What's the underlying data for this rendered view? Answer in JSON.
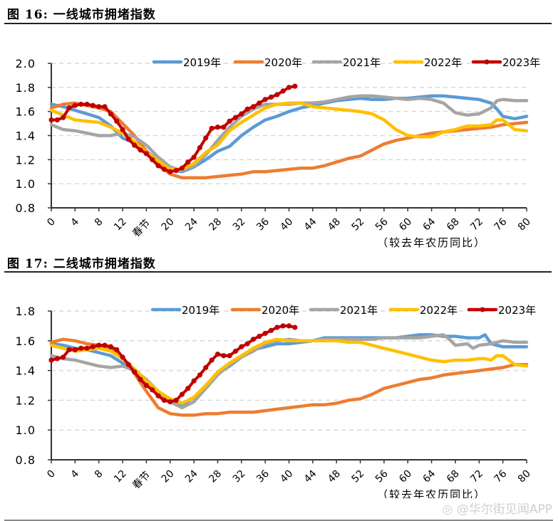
{
  "page": {
    "watermark": "@华尔街见闻APP",
    "watermark_icon": "weibo-icon"
  },
  "colors": {
    "2019": "#5B9BD5",
    "2020": "#ED7D31",
    "2021": "#A5A5A5",
    "2022": "#FFC000",
    "2023": "#C00000"
  },
  "chart_data": [
    {
      "type": "line",
      "figure_label": "图 16:",
      "title": "一线城市拥堵指数",
      "xlabel": "（较去年农历同比）",
      "ylabel": "",
      "xlim": [
        0,
        80
      ],
      "ylim": [
        0.8,
        2.0
      ],
      "yticks": [
        "0.8",
        "1.0",
        "1.2",
        "1.4",
        "1.6",
        "1.8",
        "2.0"
      ],
      "xticks": [
        "0",
        "4",
        "8",
        "12",
        "春节",
        "20",
        "24",
        "28",
        "32",
        "36",
        "40",
        "44",
        "48",
        "52",
        "56",
        "60",
        "64",
        "68",
        "72",
        "76",
        "80"
      ],
      "grid": true,
      "legend": "top-right",
      "series": [
        {
          "name": "2019年",
          "key": "2019",
          "x": [
            0,
            2,
            4,
            6,
            8,
            10,
            12,
            14,
            16,
            18,
            20,
            22,
            24,
            26,
            28,
            30,
            32,
            34,
            36,
            38,
            40,
            42,
            44,
            46,
            48,
            50,
            52,
            54,
            56,
            58,
            60,
            62,
            64,
            66,
            68,
            70,
            72,
            74,
            75,
            76,
            78,
            80
          ],
          "y": [
            1.66,
            1.64,
            1.61,
            1.58,
            1.55,
            1.48,
            1.38,
            1.34,
            1.27,
            1.19,
            1.12,
            1.1,
            1.14,
            1.2,
            1.27,
            1.31,
            1.4,
            1.47,
            1.53,
            1.56,
            1.6,
            1.63,
            1.65,
            1.67,
            1.69,
            1.7,
            1.71,
            1.7,
            1.7,
            1.71,
            1.71,
            1.72,
            1.73,
            1.73,
            1.72,
            1.71,
            1.7,
            1.67,
            1.62,
            1.56,
            1.54,
            1.56
          ]
        },
        {
          "name": "2020年",
          "key": "2020",
          "x": [
            0,
            2,
            4,
            6,
            8,
            10,
            12,
            14,
            16,
            18,
            20,
            22,
            24,
            26,
            28,
            30,
            32,
            34,
            36,
            38,
            40,
            42,
            44,
            46,
            48,
            50,
            52,
            54,
            56,
            58,
            60,
            62,
            64,
            66,
            68,
            70,
            72,
            74,
            76,
            78,
            80
          ],
          "y": [
            1.63,
            1.66,
            1.67,
            1.65,
            1.63,
            1.6,
            1.5,
            1.4,
            1.27,
            1.16,
            1.08,
            1.05,
            1.05,
            1.05,
            1.06,
            1.07,
            1.08,
            1.1,
            1.1,
            1.11,
            1.12,
            1.13,
            1.13,
            1.15,
            1.18,
            1.21,
            1.23,
            1.28,
            1.33,
            1.36,
            1.38,
            1.4,
            1.42,
            1.43,
            1.44,
            1.45,
            1.46,
            1.47,
            1.49,
            1.5,
            1.51
          ]
        },
        {
          "name": "2021年",
          "key": "2021",
          "x": [
            0,
            2,
            4,
            6,
            8,
            10,
            12,
            14,
            16,
            18,
            20,
            22,
            24,
            26,
            28,
            30,
            32,
            34,
            36,
            38,
            40,
            42,
            44,
            46,
            48,
            50,
            52,
            54,
            56,
            58,
            60,
            62,
            64,
            66,
            68,
            70,
            72,
            74,
            75,
            76,
            78,
            80
          ],
          "y": [
            1.49,
            1.45,
            1.44,
            1.42,
            1.4,
            1.4,
            1.42,
            1.39,
            1.32,
            1.22,
            1.14,
            1.11,
            1.15,
            1.24,
            1.36,
            1.47,
            1.56,
            1.62,
            1.66,
            1.66,
            1.66,
            1.67,
            1.67,
            1.68,
            1.7,
            1.72,
            1.73,
            1.73,
            1.72,
            1.71,
            1.7,
            1.71,
            1.7,
            1.67,
            1.59,
            1.57,
            1.58,
            1.63,
            1.69,
            1.7,
            1.69,
            1.69
          ]
        },
        {
          "name": "2022年",
          "key": "2022",
          "x": [
            0,
            2,
            4,
            6,
            8,
            10,
            12,
            14,
            16,
            18,
            20,
            22,
            24,
            26,
            28,
            30,
            32,
            34,
            36,
            38,
            40,
            42,
            44,
            46,
            48,
            50,
            52,
            54,
            56,
            58,
            60,
            62,
            64,
            66,
            68,
            70,
            72,
            74,
            75,
            76,
            78,
            80
          ],
          "y": [
            1.61,
            1.57,
            1.53,
            1.52,
            1.51,
            1.47,
            1.42,
            1.35,
            1.26,
            1.19,
            1.12,
            1.12,
            1.17,
            1.26,
            1.32,
            1.44,
            1.51,
            1.57,
            1.63,
            1.66,
            1.67,
            1.67,
            1.64,
            1.63,
            1.62,
            1.61,
            1.6,
            1.58,
            1.53,
            1.45,
            1.4,
            1.39,
            1.39,
            1.43,
            1.45,
            1.48,
            1.48,
            1.49,
            1.53,
            1.53,
            1.45,
            1.44
          ]
        },
        {
          "name": "2023年",
          "key": "2023",
          "x": [
            0,
            1,
            2,
            3,
            4,
            5,
            6,
            7,
            8,
            9,
            10,
            11,
            12,
            13,
            14,
            15,
            16,
            17,
            18,
            19,
            20,
            21,
            22,
            23,
            24,
            25,
            26,
            27,
            28,
            29,
            30,
            31,
            32,
            33,
            34,
            35,
            36,
            37,
            38,
            39,
            40,
            41
          ],
          "y": [
            1.53,
            1.53,
            1.55,
            1.63,
            1.65,
            1.66,
            1.66,
            1.65,
            1.64,
            1.64,
            1.58,
            1.52,
            1.45,
            1.37,
            1.32,
            1.28,
            1.25,
            1.2,
            1.15,
            1.12,
            1.1,
            1.11,
            1.13,
            1.18,
            1.22,
            1.3,
            1.38,
            1.46,
            1.47,
            1.47,
            1.52,
            1.55,
            1.58,
            1.62,
            1.64,
            1.67,
            1.7,
            1.72,
            1.74,
            1.77,
            1.8,
            1.81
          ]
        }
      ]
    },
    {
      "type": "line",
      "figure_label": "图 17:",
      "title": "二线城市拥堵指数",
      "xlabel": "（较去年农历同比）",
      "ylabel": "",
      "xlim": [
        0,
        80
      ],
      "ylim": [
        0.8,
        1.8
      ],
      "yticks": [
        "0.8",
        "1.0",
        "1.2",
        "1.4",
        "1.6",
        "1.8"
      ],
      "xticks": [
        "0",
        "4",
        "8",
        "12",
        "春节",
        "20",
        "24",
        "28",
        "32",
        "36",
        "40",
        "44",
        "48",
        "52",
        "56",
        "60",
        "64",
        "68",
        "72",
        "76",
        "80"
      ],
      "grid": true,
      "legend": "top-right",
      "series": [
        {
          "name": "2019年",
          "key": "2019",
          "x": [
            0,
            2,
            4,
            6,
            8,
            10,
            12,
            14,
            16,
            18,
            20,
            22,
            24,
            26,
            28,
            30,
            32,
            34,
            36,
            38,
            40,
            42,
            44,
            46,
            48,
            50,
            52,
            54,
            56,
            58,
            60,
            62,
            64,
            66,
            68,
            70,
            72,
            73,
            74,
            76,
            78,
            80
          ],
          "y": [
            1.58,
            1.57,
            1.55,
            1.54,
            1.52,
            1.5,
            1.45,
            1.41,
            1.33,
            1.25,
            1.19,
            1.17,
            1.22,
            1.3,
            1.38,
            1.43,
            1.49,
            1.54,
            1.56,
            1.58,
            1.58,
            1.59,
            1.6,
            1.62,
            1.62,
            1.62,
            1.62,
            1.62,
            1.62,
            1.62,
            1.63,
            1.64,
            1.64,
            1.63,
            1.63,
            1.62,
            1.62,
            1.64,
            1.58,
            1.56,
            1.56,
            1.56
          ]
        },
        {
          "name": "2020年",
          "key": "2020",
          "x": [
            0,
            2,
            4,
            6,
            8,
            10,
            12,
            14,
            16,
            18,
            20,
            22,
            24,
            26,
            28,
            30,
            32,
            34,
            36,
            38,
            40,
            42,
            44,
            46,
            48,
            50,
            52,
            54,
            56,
            58,
            60,
            62,
            64,
            66,
            68,
            70,
            72,
            74,
            76,
            78,
            80
          ],
          "y": [
            1.59,
            1.61,
            1.6,
            1.58,
            1.57,
            1.55,
            1.49,
            1.38,
            1.26,
            1.15,
            1.11,
            1.1,
            1.1,
            1.11,
            1.11,
            1.12,
            1.12,
            1.12,
            1.13,
            1.14,
            1.15,
            1.16,
            1.17,
            1.17,
            1.18,
            1.2,
            1.21,
            1.24,
            1.28,
            1.3,
            1.32,
            1.34,
            1.35,
            1.37,
            1.38,
            1.39,
            1.4,
            1.41,
            1.42,
            1.44,
            1.44
          ]
        },
        {
          "name": "2021年",
          "key": "2021",
          "x": [
            0,
            2,
            4,
            6,
            8,
            10,
            12,
            14,
            16,
            18,
            20,
            22,
            24,
            26,
            28,
            30,
            32,
            34,
            36,
            38,
            40,
            42,
            44,
            46,
            48,
            50,
            52,
            54,
            56,
            58,
            60,
            62,
            64,
            66,
            67,
            68,
            70,
            71,
            72,
            74,
            76,
            78,
            80
          ],
          "y": [
            1.5,
            1.48,
            1.47,
            1.45,
            1.43,
            1.42,
            1.43,
            1.4,
            1.34,
            1.26,
            1.19,
            1.15,
            1.19,
            1.28,
            1.37,
            1.44,
            1.49,
            1.53,
            1.58,
            1.6,
            1.61,
            1.6,
            1.6,
            1.61,
            1.61,
            1.61,
            1.61,
            1.61,
            1.62,
            1.62,
            1.62,
            1.62,
            1.63,
            1.64,
            1.61,
            1.57,
            1.58,
            1.55,
            1.57,
            1.58,
            1.6,
            1.59,
            1.59
          ]
        },
        {
          "name": "2022年",
          "key": "2022",
          "x": [
            0,
            2,
            4,
            6,
            8,
            10,
            12,
            14,
            16,
            18,
            20,
            22,
            24,
            26,
            28,
            30,
            32,
            34,
            36,
            38,
            40,
            42,
            44,
            46,
            48,
            50,
            52,
            54,
            56,
            58,
            60,
            62,
            64,
            66,
            68,
            70,
            72,
            73,
            74,
            75,
            76,
            78,
            80
          ],
          "y": [
            1.57,
            1.55,
            1.53,
            1.54,
            1.55,
            1.53,
            1.48,
            1.41,
            1.33,
            1.26,
            1.21,
            1.18,
            1.22,
            1.3,
            1.39,
            1.45,
            1.5,
            1.55,
            1.59,
            1.61,
            1.6,
            1.6,
            1.6,
            1.6,
            1.6,
            1.59,
            1.59,
            1.57,
            1.55,
            1.53,
            1.51,
            1.49,
            1.47,
            1.46,
            1.47,
            1.47,
            1.48,
            1.48,
            1.47,
            1.5,
            1.5,
            1.44,
            1.43
          ]
        },
        {
          "name": "2023年",
          "key": "2023",
          "x": [
            0,
            1,
            2,
            3,
            4,
            5,
            6,
            7,
            8,
            9,
            10,
            11,
            12,
            13,
            14,
            15,
            16,
            17,
            18,
            19,
            20,
            21,
            22,
            23,
            24,
            25,
            26,
            27,
            28,
            29,
            30,
            31,
            32,
            33,
            34,
            35,
            36,
            37,
            38,
            39,
            40,
            41
          ],
          "y": [
            1.47,
            1.48,
            1.49,
            1.54,
            1.54,
            1.55,
            1.55,
            1.56,
            1.57,
            1.57,
            1.56,
            1.54,
            1.49,
            1.44,
            1.39,
            1.34,
            1.3,
            1.27,
            1.23,
            1.2,
            1.19,
            1.2,
            1.24,
            1.28,
            1.33,
            1.37,
            1.42,
            1.47,
            1.51,
            1.5,
            1.5,
            1.53,
            1.56,
            1.58,
            1.61,
            1.63,
            1.65,
            1.67,
            1.69,
            1.7,
            1.7,
            1.69
          ]
        }
      ]
    }
  ]
}
